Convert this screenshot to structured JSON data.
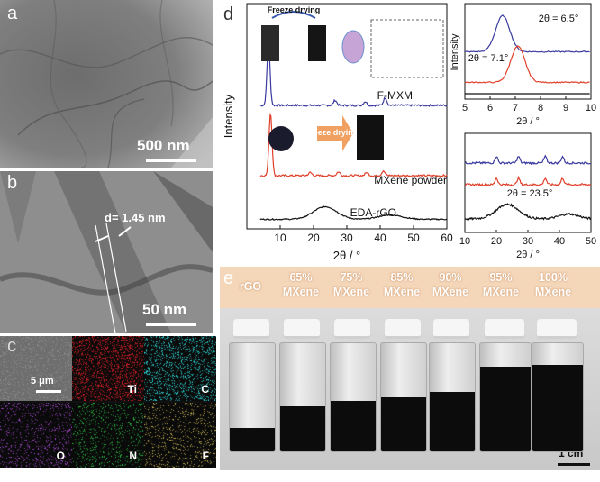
{
  "panels": {
    "a": {
      "letter": "a",
      "scale_label": "500 nm"
    },
    "b": {
      "letter": "b",
      "scale_label": "50 nm",
      "d_label": "d= 1.45 nm"
    },
    "c": {
      "letter": "c",
      "scale_label": "5 μm",
      "maps": [
        {
          "element": "",
          "color": "#b9b9b9"
        },
        {
          "element": "Ti",
          "color": "#e8222a"
        },
        {
          "element": "C",
          "color": "#2fd8d8"
        },
        {
          "element": "O",
          "color": "#b24ee0"
        },
        {
          "element": "N",
          "color": "#2fce4a"
        },
        {
          "element": "F",
          "color": "#d9c45a"
        }
      ]
    },
    "d": {
      "letter": "d"
    },
    "e": {
      "letter": "e",
      "scale_label": "1 cm"
    }
  },
  "chart_data": [
    {
      "type": "line",
      "xlabel": "2θ / °",
      "ylabel": "Intensity",
      "xlim": [
        0,
        60
      ],
      "xticks": [
        10,
        20,
        30,
        40,
        50,
        60
      ],
      "series": [
        {
          "name": "F-MXM",
          "color": "#3a3aa0",
          "peaks": [
            [
              6.5,
              1.0
            ],
            [
              26.5,
              0.08
            ],
            [
              35.5,
              0.06
            ],
            [
              41.5,
              0.12
            ]
          ]
        },
        {
          "name": "MXene powder",
          "color": "#e0402a",
          "peaks": [
            [
              7.1,
              1.0
            ],
            [
              19,
              0.05
            ],
            [
              27.5,
              0.06
            ],
            [
              36,
              0.05
            ],
            [
              41,
              0.08
            ]
          ]
        },
        {
          "name": "EDA-rGO",
          "color": "#111111",
          "peaks": [
            [
              23.5,
              0.35
            ],
            [
              43,
              0.12
            ]
          ]
        }
      ],
      "annotations": [
        "Freeze drying",
        "Freeze drying"
      ]
    },
    {
      "type": "line",
      "ylabel": "Intensity",
      "xlabel": "2θ / °",
      "xlim": [
        5,
        10
      ],
      "xticks": [
        5,
        6,
        7,
        8,
        9,
        10
      ],
      "annotations": [
        "2θ = 6.5°",
        "2θ = 7.1°"
      ],
      "series": [
        {
          "name": "F-MXM",
          "color": "#3a3aa0",
          "peak": 6.5
        },
        {
          "name": "MXene powder",
          "color": "#e0402a",
          "peak": 7.1
        },
        {
          "name": "EDA-rGO",
          "color": "#111111"
        }
      ]
    },
    {
      "type": "line",
      "xlabel": "2θ / °",
      "xlim": [
        10,
        50
      ],
      "xticks": [
        10,
        20,
        30,
        40,
        50
      ],
      "annotations": [
        "2θ = 23.5°"
      ],
      "series": [
        {
          "name": "F-MXM",
          "color": "#3a3aa0"
        },
        {
          "name": "MXene powder",
          "color": "#e0402a"
        },
        {
          "name": "EDA-rGO",
          "color": "#111111",
          "peak": 23.5
        }
      ]
    }
  ],
  "vials": {
    "labels": [
      {
        "line1": "rGO",
        "line2": "",
        "fill": 0.22
      },
      {
        "line1": "65%",
        "line2": "MXene",
        "fill": 0.42
      },
      {
        "line1": "75%",
        "line2": "MXene",
        "fill": 0.47
      },
      {
        "line1": "85%",
        "line2": "MXene",
        "fill": 0.5
      },
      {
        "line1": "90%",
        "line2": "MXene",
        "fill": 0.55
      },
      {
        "line1": "95%",
        "line2": "MXene",
        "fill": 0.78
      },
      {
        "line1": "100%",
        "line2": "MXene",
        "fill": 0.8
      }
    ]
  }
}
